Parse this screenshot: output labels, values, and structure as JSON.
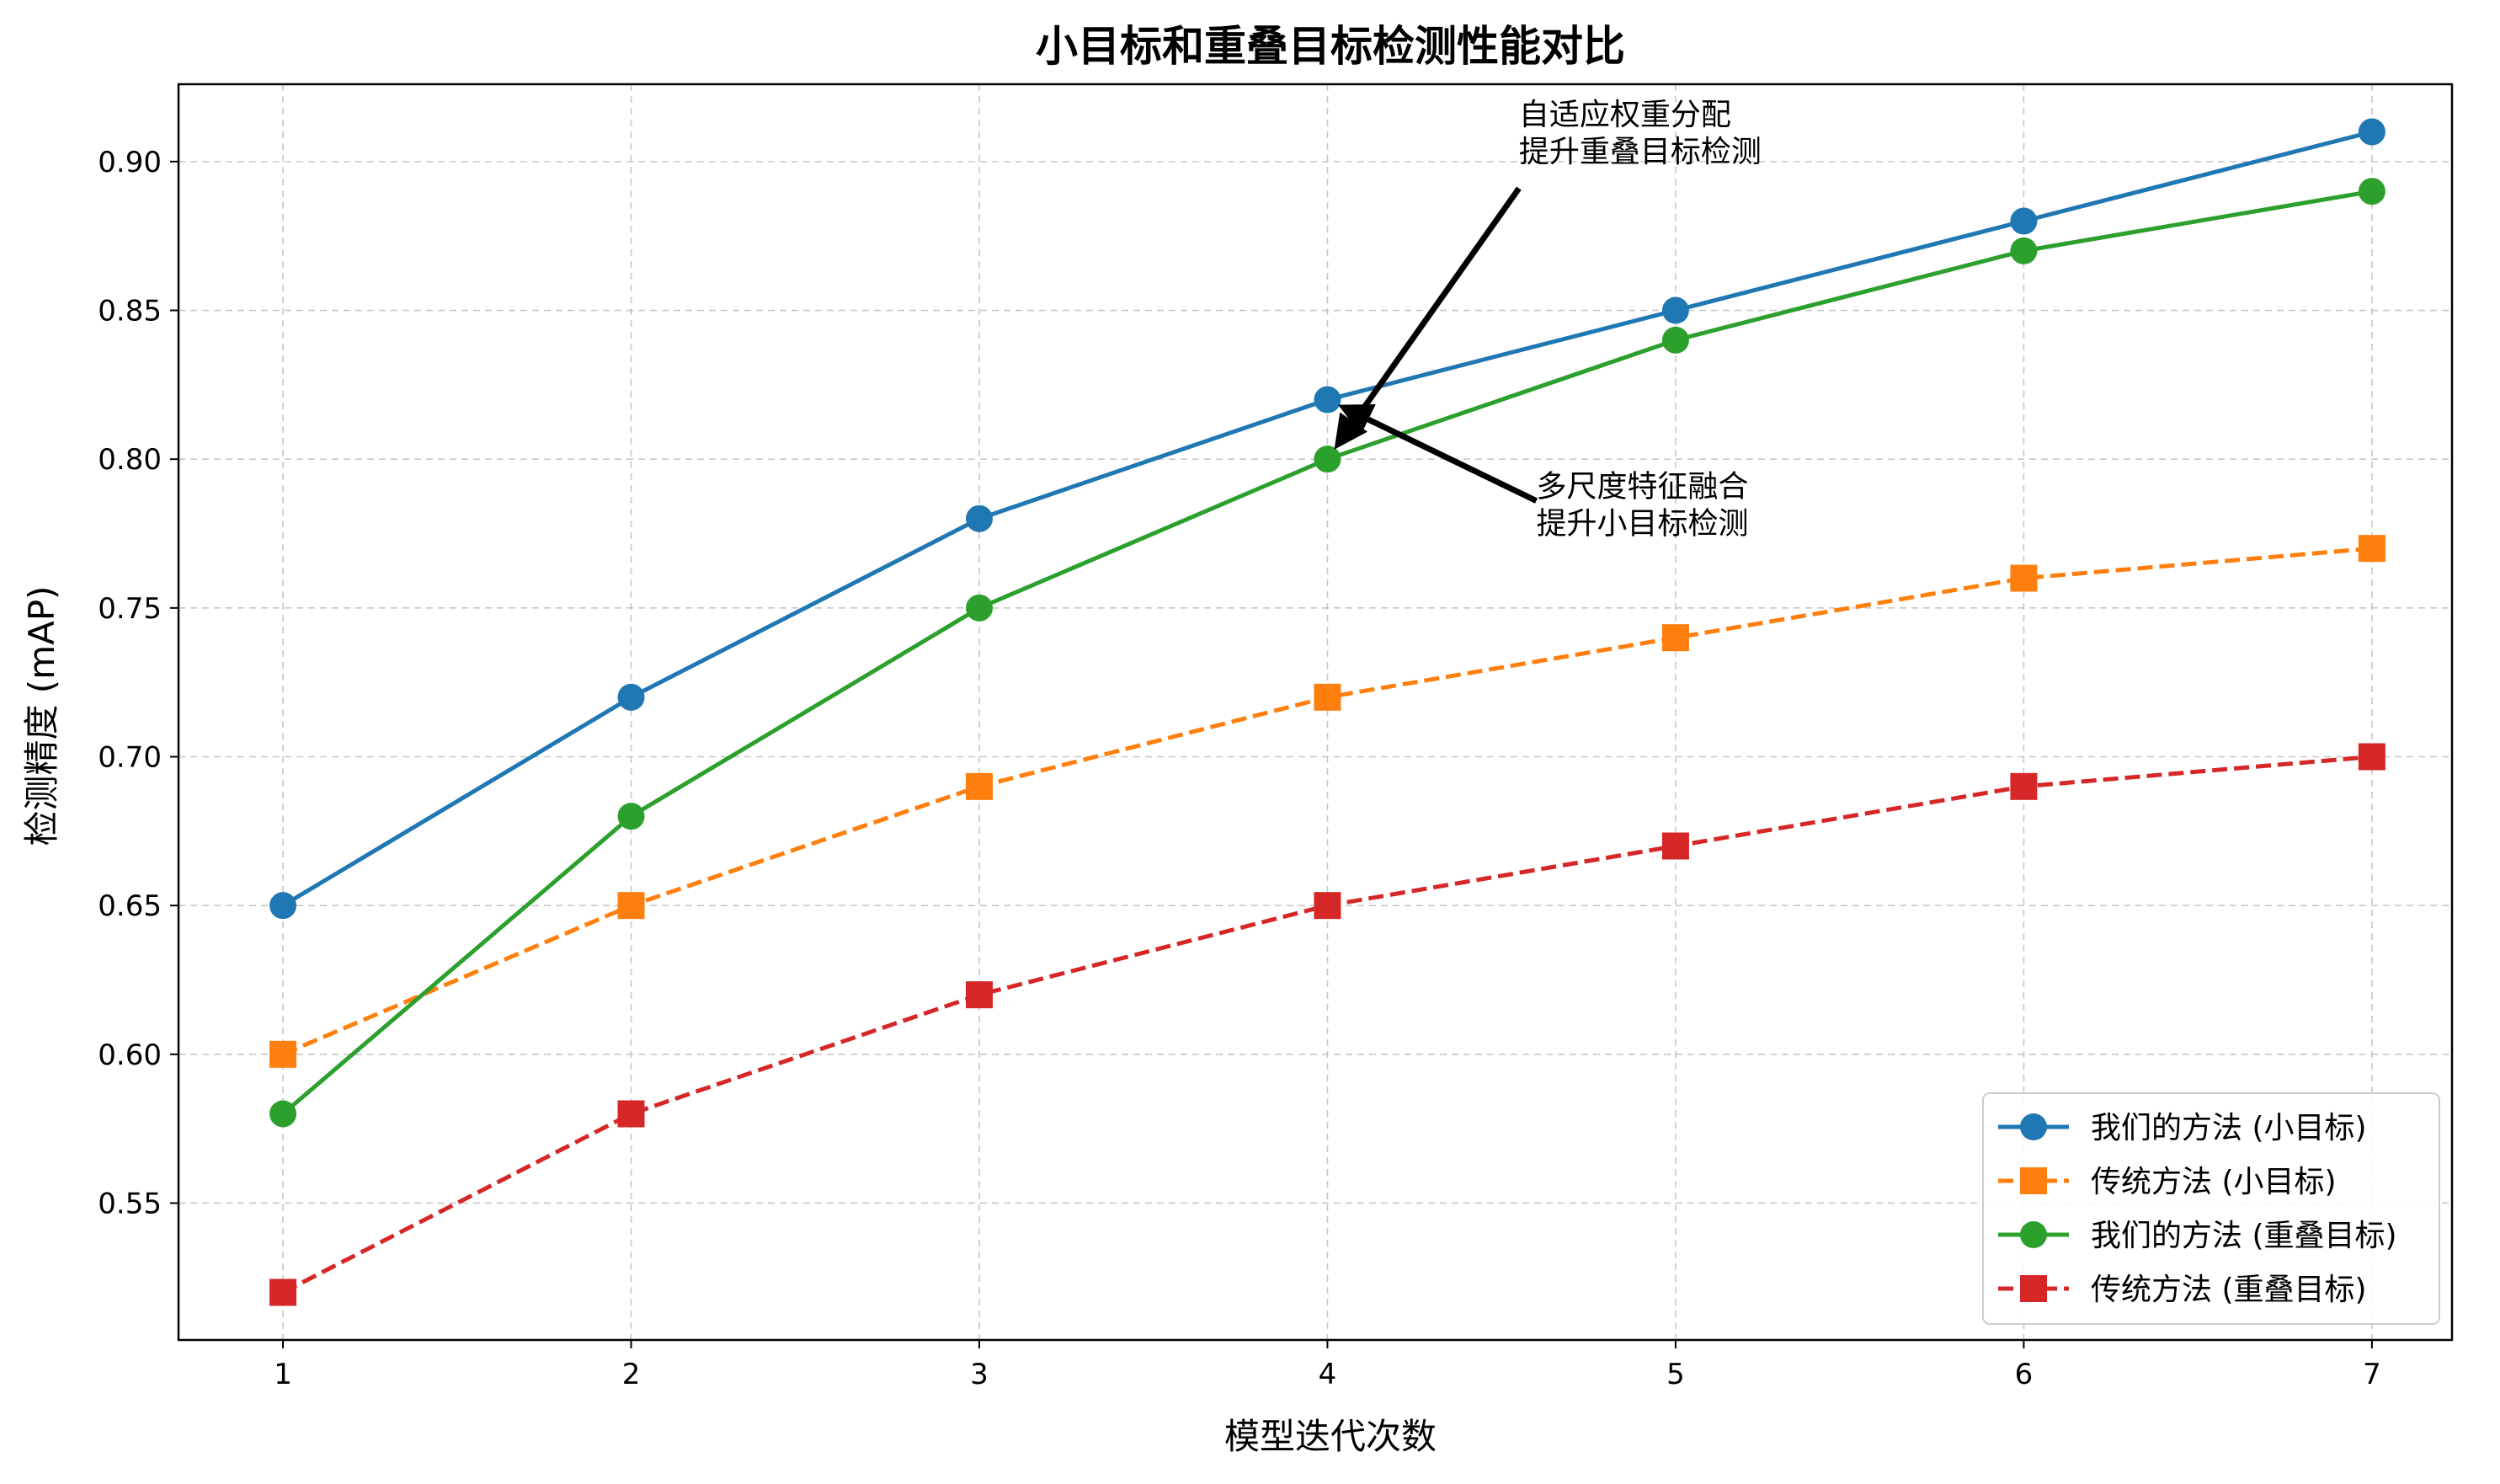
{
  "chart_data": {
    "type": "line",
    "title": "小目标和重叠目标检测性能对比",
    "xlabel": "模型迭代次数",
    "ylabel": "检测精度 (mAP)",
    "x": [
      1,
      2,
      3,
      4,
      5,
      6,
      7
    ],
    "xticks": [
      "1",
      "2",
      "3",
      "4",
      "5",
      "6",
      "7"
    ],
    "yticks": [
      "0.55",
      "0.60",
      "0.65",
      "0.70",
      "0.75",
      "0.80",
      "0.85",
      "0.90"
    ],
    "xlim": [
      0.7,
      7.23
    ],
    "ylim": [
      0.504,
      0.926
    ],
    "grid": true,
    "legend_position": "lower-right",
    "series": [
      {
        "name": "我们的方法 (小目标)",
        "values": [
          0.65,
          0.72,
          0.78,
          0.82,
          0.85,
          0.88,
          0.91
        ],
        "color": "#1f77b4",
        "marker": "circle",
        "linestyle": "solid"
      },
      {
        "name": "传统方法 (小目标)",
        "values": [
          0.6,
          0.65,
          0.69,
          0.72,
          0.74,
          0.76,
          0.77
        ],
        "color": "#ff7f0e",
        "marker": "square",
        "linestyle": "dashed"
      },
      {
        "name": "我们的方法 (重叠目标)",
        "values": [
          0.58,
          0.68,
          0.75,
          0.8,
          0.84,
          0.87,
          0.89
        ],
        "color": "#2ca02c",
        "marker": "circle",
        "linestyle": "solid"
      },
      {
        "name": "传统方法 (重叠目标)",
        "values": [
          0.52,
          0.58,
          0.62,
          0.65,
          0.67,
          0.69,
          0.7
        ],
        "color": "#d62728",
        "marker": "square",
        "linestyle": "dashed"
      }
    ],
    "annotations": [
      {
        "lines": [
          "自适应权重分配",
          "提升重叠目标检测"
        ],
        "target": {
          "x": 4.0,
          "y": 0.8
        },
        "text_at": {
          "x": 4.55,
          "y": 0.9
        }
      },
      {
        "lines": [
          "多尺度特征融合",
          "提升小目标检测"
        ],
        "target": {
          "x": 4.0,
          "y": 0.82
        },
        "text_at": {
          "x": 4.6,
          "y": 0.775
        }
      }
    ]
  }
}
